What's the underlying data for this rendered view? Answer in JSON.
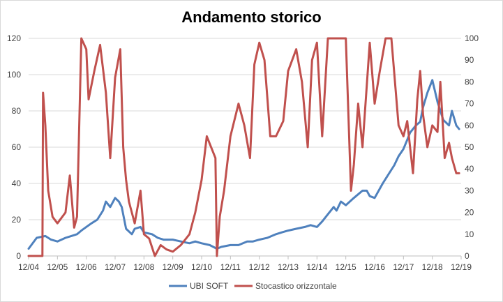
{
  "chart_data": {
    "type": "line",
    "title": "Andamento storico",
    "x_tick_labels": [
      "12/04",
      "12/05",
      "12/06",
      "12/07",
      "12/08",
      "12/09",
      "12/10",
      "12/11",
      "12/12",
      "12/13",
      "12/14",
      "12/15",
      "12/16",
      "12/17",
      "12/18",
      "12/19"
    ],
    "y_left": {
      "lim": [
        0,
        120
      ],
      "ticks": [
        0,
        20,
        40,
        60,
        80,
        100,
        120
      ]
    },
    "y_right": {
      "lim": [
        0,
        100
      ],
      "ticks": [
        0,
        10,
        20,
        30,
        40,
        50,
        60,
        70,
        80,
        90,
        100
      ]
    },
    "grid": "horizontal",
    "legend_position": "bottom",
    "series": [
      {
        "name": "UBI SOFT",
        "color": "#4f81bd",
        "axis": "left",
        "x": [
          2004.92,
          2005.2,
          2005.5,
          2005.7,
          2005.92,
          2006.2,
          2006.4,
          2006.6,
          2006.75,
          2006.92,
          2007.1,
          2007.3,
          2007.5,
          2007.6,
          2007.75,
          2007.92,
          2008.05,
          2008.15,
          2008.3,
          2008.5,
          2008.6,
          2008.8,
          2008.92,
          2009.2,
          2009.4,
          2009.6,
          2009.92,
          2010.2,
          2010.5,
          2010.7,
          2010.92,
          2011.2,
          2011.45,
          2011.6,
          2011.92,
          2012.2,
          2012.5,
          2012.7,
          2012.92,
          2013.2,
          2013.5,
          2013.7,
          2013.92,
          2014.2,
          2014.5,
          2014.7,
          2014.92,
          2015.1,
          2015.3,
          2015.5,
          2015.6,
          2015.75,
          2015.92,
          2016.2,
          2016.5,
          2016.65,
          2016.75,
          2016.92,
          2017.2,
          2017.4,
          2017.6,
          2017.75,
          2017.92,
          2018.05,
          2018.15,
          2018.25,
          2018.35,
          2018.5,
          2018.6,
          2018.75,
          2018.92,
          2019.1,
          2019.3,
          2019.5,
          2019.6,
          2019.75,
          2019.85
        ],
        "y": [
          4,
          10,
          11,
          9,
          8,
          10,
          11,
          12,
          14,
          16,
          18,
          20,
          25,
          30,
          27,
          32,
          30,
          27,
          15,
          12,
          15,
          16,
          13,
          12,
          10,
          9,
          9,
          8,
          7,
          8,
          7,
          6,
          4,
          5,
          6,
          6,
          8,
          8,
          9,
          10,
          12,
          13,
          14,
          15,
          16,
          17,
          16,
          19,
          23,
          27,
          25,
          30,
          28,
          32,
          36,
          36,
          33,
          32,
          40,
          45,
          50,
          55,
          59,
          64,
          68,
          70,
          72,
          74,
          82,
          90,
          97,
          85,
          75,
          72,
          80,
          72,
          70
        ]
      },
      {
        "name": "Stocastico orizzontale",
        "color": "#c0504d",
        "axis": "right",
        "x": [
          2004.92,
          2005.4,
          2005.42,
          2005.5,
          2005.6,
          2005.75,
          2005.92,
          2006.2,
          2006.35,
          2006.5,
          2006.6,
          2006.75,
          2006.92,
          2007.0,
          2007.2,
          2007.4,
          2007.6,
          2007.75,
          2007.92,
          2008.1,
          2008.2,
          2008.3,
          2008.4,
          2008.6,
          2008.8,
          2008.92,
          2009.1,
          2009.3,
          2009.5,
          2009.7,
          2009.92,
          2010.2,
          2010.5,
          2010.7,
          2010.92,
          2011.1,
          2011.4,
          2011.45,
          2011.55,
          2011.7,
          2011.92,
          2012.2,
          2012.4,
          2012.6,
          2012.75,
          2012.92,
          2013.1,
          2013.3,
          2013.5,
          2013.75,
          2013.92,
          2014.2,
          2014.4,
          2014.6,
          2014.75,
          2014.92,
          2015.1,
          2015.3,
          2015.5,
          2015.75,
          2015.92,
          2016.1,
          2016.2,
          2016.35,
          2016.5,
          2016.75,
          2016.92,
          2017.1,
          2017.3,
          2017.5,
          2017.75,
          2017.92,
          2018.05,
          2018.15,
          2018.25,
          2018.4,
          2018.5,
          2018.6,
          2018.75,
          2018.92,
          2019.1,
          2019.2,
          2019.35,
          2019.5,
          2019.6,
          2019.75,
          2019.85
        ],
        "y": [
          0,
          0,
          75,
          60,
          30,
          18,
          15,
          20,
          37,
          13,
          18,
          100,
          95,
          72,
          85,
          97,
          75,
          45,
          82,
          95,
          50,
          35,
          25,
          15,
          30,
          10,
          8,
          0,
          5,
          3,
          2,
          5,
          10,
          20,
          35,
          55,
          45,
          0,
          18,
          30,
          55,
          70,
          60,
          45,
          88,
          98,
          90,
          55,
          55,
          62,
          85,
          95,
          80,
          50,
          90,
          98,
          55,
          100,
          100,
          100,
          100,
          30,
          42,
          70,
          50,
          98,
          70,
          85,
          100,
          100,
          60,
          55,
          62,
          50,
          38,
          72,
          85,
          65,
          50,
          60,
          57,
          80,
          45,
          52,
          45,
          38,
          38
        ]
      }
    ]
  }
}
